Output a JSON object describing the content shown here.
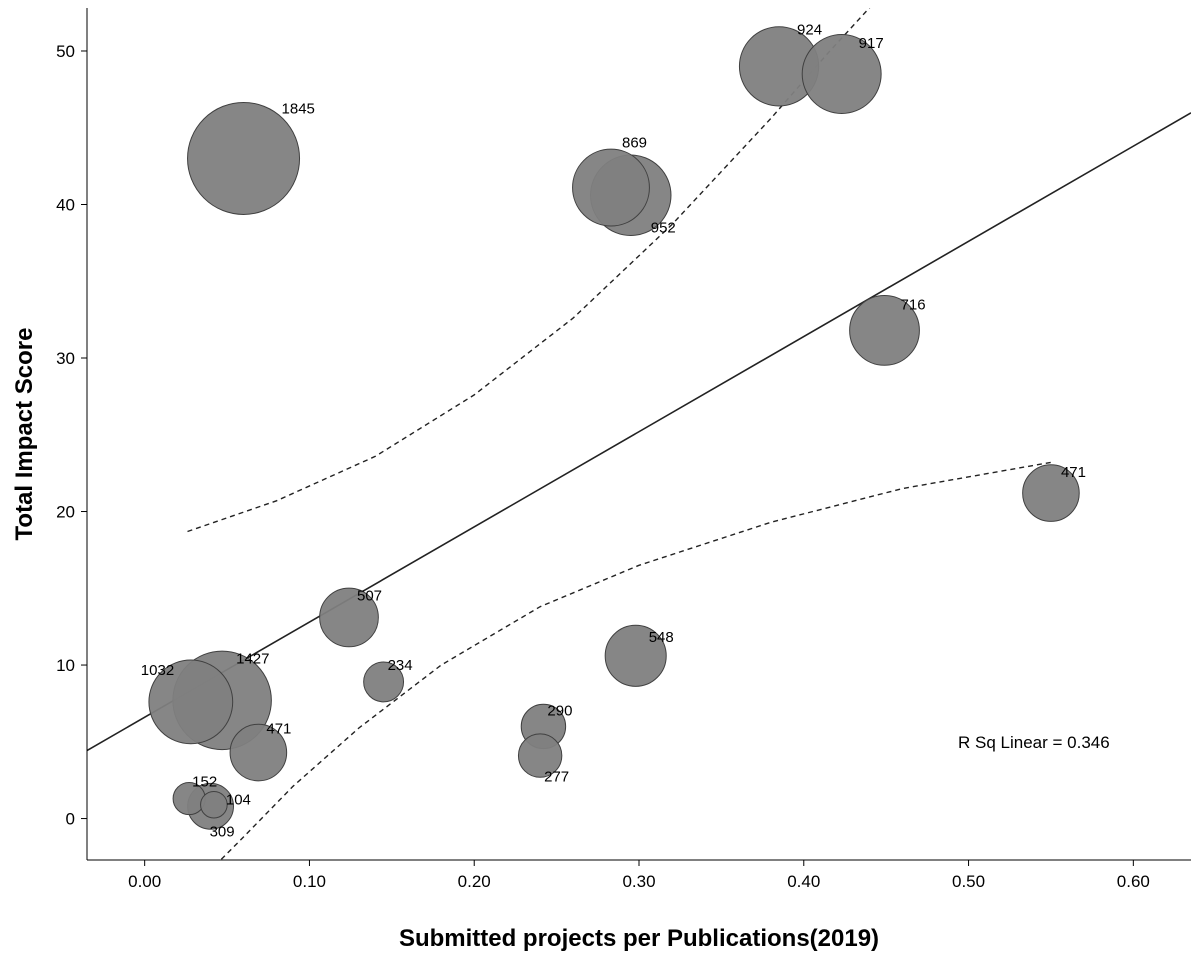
{
  "chart_data": {
    "type": "scatter",
    "title": "",
    "xlabel": "Submitted projects per Publications(2019)",
    "ylabel": "Total Impact Score",
    "xlim": [
      -0.035,
      0.635
    ],
    "ylim": [
      -2.7,
      52.8
    ],
    "x_ticks": [
      0.0,
      0.1,
      0.2,
      0.3,
      0.4,
      0.5,
      0.6
    ],
    "x_tick_labels": [
      "0.00",
      "0.10",
      "0.20",
      "0.30",
      "0.40",
      "0.50",
      "0.60"
    ],
    "y_ticks": [
      0,
      10,
      20,
      30,
      40,
      50
    ],
    "y_tick_labels": [
      "0",
      "10",
      "20",
      "30",
      "40",
      "50"
    ],
    "grid": false,
    "legend": "none",
    "marker_color": "#808080",
    "marker_edge_color": "#404040",
    "points": [
      {
        "x": 0.06,
        "y": 43.0,
        "size": 1845,
        "label": "1845"
      },
      {
        "x": 0.028,
        "y": 7.6,
        "size": 1032,
        "label": "1032"
      },
      {
        "x": 0.047,
        "y": 7.7,
        "size": 1427,
        "label": "1427"
      },
      {
        "x": 0.069,
        "y": 4.3,
        "size": 471,
        "label": "471"
      },
      {
        "x": 0.027,
        "y": 1.3,
        "size": 152,
        "label": "152"
      },
      {
        "x": 0.04,
        "y": 0.8,
        "size": 309,
        "label": "309"
      },
      {
        "x": 0.042,
        "y": 0.9,
        "size": 104,
        "label": "104"
      },
      {
        "x": 0.124,
        "y": 13.1,
        "size": 507,
        "label": "507"
      },
      {
        "x": 0.145,
        "y": 8.9,
        "size": 234,
        "label": "234"
      },
      {
        "x": 0.242,
        "y": 6.0,
        "size": 290,
        "label": "290"
      },
      {
        "x": 0.24,
        "y": 4.1,
        "size": 277,
        "label": "277"
      },
      {
        "x": 0.298,
        "y": 10.6,
        "size": 548,
        "label": "548"
      },
      {
        "x": 0.283,
        "y": 41.1,
        "size": 869,
        "label": "869"
      },
      {
        "x": 0.295,
        "y": 40.6,
        "size": 952,
        "label": "952"
      },
      {
        "x": 0.385,
        "y": 49.0,
        "size": 924,
        "label": "924"
      },
      {
        "x": 0.423,
        "y": 48.5,
        "size": 917,
        "label": "917"
      },
      {
        "x": 0.449,
        "y": 31.8,
        "size": 716,
        "label": "716"
      },
      {
        "x": 0.55,
        "y": 21.2,
        "size": 471,
        "label": "471"
      }
    ],
    "fit_line": {
      "type": "linear",
      "intercept": 6.6,
      "slope": 62.0
    },
    "confidence_band": {
      "upper": [
        [
          0.026,
          18.7
        ],
        [
          0.08,
          20.7
        ],
        [
          0.14,
          23.6
        ],
        [
          0.2,
          27.6
        ],
        [
          0.26,
          32.6
        ],
        [
          0.32,
          38.7
        ],
        [
          0.38,
          45.6
        ],
        [
          0.415,
          49.9
        ],
        [
          0.45,
          54.0
        ],
        [
          0.48,
          57.8
        ],
        [
          0.55,
          66.0
        ]
      ],
      "lower": [
        [
          0.035,
          -3.9
        ],
        [
          0.06,
          -1.2
        ],
        [
          0.09,
          2.1
        ],
        [
          0.13,
          5.9
        ],
        [
          0.18,
          10.0
        ],
        [
          0.24,
          13.8
        ],
        [
          0.3,
          16.5
        ],
        [
          0.38,
          19.3
        ],
        [
          0.46,
          21.5
        ],
        [
          0.55,
          23.2
        ]
      ]
    },
    "annotations": [
      "R Sq Linear = 0.346"
    ]
  }
}
